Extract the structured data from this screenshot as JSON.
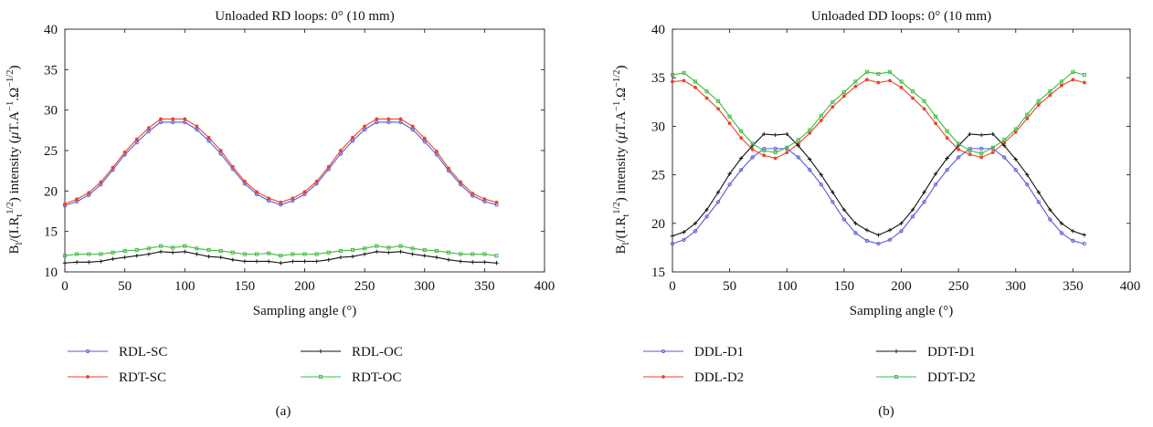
{
  "chart_data": [
    {
      "type": "line",
      "title": "Unloaded RD loops: 0° (10 mm)",
      "xlabel": "Sampling angle (°)",
      "ylabel": "B_l/(I.R_t^1/2) intensity (μT.A^-1.Ω^-1/2)",
      "ylabel_parts": {
        "b": "B",
        "sub_l": "l",
        "mid": "/(I.R",
        "sub_t": "t",
        "sup_half": "1/2",
        "rest": ") intensity (",
        "mu": "μ",
        "unit": "T.A",
        "sup_m1": "−1",
        "dot": ".Ω",
        "sup_mhalf": "−1/2",
        "close": ")"
      },
      "xlim": [
        0,
        400
      ],
      "ylim": [
        10,
        40
      ],
      "xticks": [
        0,
        50,
        100,
        150,
        200,
        250,
        300,
        350,
        400
      ],
      "yticks": [
        10,
        15,
        20,
        25,
        30,
        35,
        40
      ],
      "panel_label": "(a)",
      "x": [
        0,
        10,
        20,
        30,
        40,
        50,
        60,
        70,
        80,
        90,
        100,
        110,
        120,
        130,
        140,
        150,
        160,
        170,
        180,
        190,
        200,
        210,
        220,
        230,
        240,
        250,
        260,
        270,
        280,
        290,
        300,
        310,
        320,
        330,
        340,
        350,
        360
      ],
      "series": [
        {
          "name": "RDL-SC",
          "color": "#5a5ad6",
          "marker": "circle",
          "values": [
            18.2,
            18.7,
            19.5,
            20.8,
            22.6,
            24.5,
            26.0,
            27.4,
            28.5,
            28.5,
            28.5,
            27.6,
            26.2,
            24.6,
            22.7,
            20.9,
            19.6,
            18.8,
            18.3,
            18.8,
            19.6,
            20.9,
            22.7,
            24.6,
            26.2,
            27.6,
            28.5,
            28.5,
            28.5,
            27.6,
            26.1,
            24.5,
            22.5,
            20.8,
            19.4,
            18.7,
            18.3
          ]
        },
        {
          "name": "RDT-SC",
          "color": "#e8452c",
          "marker": "diamond",
          "values": [
            18.4,
            19.0,
            19.8,
            21.1,
            22.9,
            24.8,
            26.4,
            27.8,
            28.9,
            28.9,
            28.9,
            28.0,
            26.6,
            25.0,
            23.0,
            21.2,
            19.9,
            19.1,
            18.6,
            19.1,
            19.9,
            21.2,
            23.0,
            25.0,
            26.6,
            28.0,
            28.9,
            28.9,
            28.9,
            28.0,
            26.5,
            24.9,
            22.8,
            21.1,
            19.7,
            19.0,
            18.6
          ]
        },
        {
          "name": "RDL-OC",
          "color": "#111111",
          "marker": "plus",
          "values": [
            11.1,
            11.2,
            11.2,
            11.3,
            11.6,
            11.8,
            12.0,
            12.2,
            12.5,
            12.4,
            12.5,
            12.2,
            11.9,
            11.8,
            11.5,
            11.3,
            11.3,
            11.3,
            11.1,
            11.3,
            11.3,
            11.3,
            11.5,
            11.8,
            11.9,
            12.2,
            12.5,
            12.4,
            12.5,
            12.2,
            12.0,
            11.8,
            11.5,
            11.3,
            11.2,
            11.2,
            11.1
          ]
        },
        {
          "name": "RDT-OC",
          "color": "#3dbb3d",
          "marker": "square",
          "values": [
            12.0,
            12.2,
            12.2,
            12.2,
            12.4,
            12.6,
            12.7,
            12.9,
            13.2,
            13.0,
            13.2,
            12.9,
            12.7,
            12.6,
            12.4,
            12.2,
            12.2,
            12.3,
            12.0,
            12.2,
            12.2,
            12.2,
            12.4,
            12.6,
            12.7,
            12.9,
            13.2,
            13.0,
            13.2,
            12.9,
            12.7,
            12.6,
            12.4,
            12.2,
            12.2,
            12.2,
            12.0
          ]
        }
      ]
    },
    {
      "type": "line",
      "title": "Unloaded DD loops: 0° (10 mm)",
      "xlabel": "Sampling angle (°)",
      "ylabel": "B_l/(I.R_t^1/2) intensity (μT.A^-1.Ω^-1/2)",
      "xlim": [
        0,
        400
      ],
      "ylim": [
        15,
        40
      ],
      "xticks": [
        0,
        50,
        100,
        150,
        200,
        250,
        300,
        350,
        400
      ],
      "yticks": [
        15,
        20,
        25,
        30,
        35,
        40
      ],
      "panel_label": "(b)",
      "x": [
        0,
        10,
        20,
        30,
        40,
        50,
        60,
        70,
        80,
        90,
        100,
        110,
        120,
        130,
        140,
        150,
        160,
        170,
        180,
        190,
        200,
        210,
        220,
        230,
        240,
        250,
        260,
        270,
        280,
        290,
        300,
        310,
        320,
        330,
        340,
        350,
        360
      ],
      "series": [
        {
          "name": "DDL-D1",
          "color": "#5a5ad6",
          "marker": "circle",
          "values": [
            17.9,
            18.3,
            19.2,
            20.7,
            22.2,
            24.0,
            25.5,
            26.8,
            27.7,
            27.7,
            27.7,
            26.8,
            25.5,
            24.0,
            22.2,
            20.4,
            19.0,
            18.2,
            17.9,
            18.3,
            19.2,
            20.7,
            22.2,
            24.0,
            25.5,
            26.8,
            27.7,
            27.7,
            27.7,
            26.8,
            25.5,
            24.0,
            22.2,
            20.4,
            19.0,
            18.2,
            17.9
          ]
        },
        {
          "name": "DDL-D2",
          "color": "#e8452c",
          "marker": "diamond",
          "values": [
            34.6,
            34.7,
            34.0,
            32.9,
            31.8,
            30.3,
            28.8,
            27.6,
            27.0,
            26.7,
            27.3,
            28.2,
            29.3,
            30.6,
            32.0,
            33.1,
            34.1,
            34.8,
            34.5,
            34.7,
            34.0,
            32.9,
            31.8,
            30.3,
            28.8,
            27.6,
            27.1,
            26.8,
            27.3,
            28.3,
            29.4,
            30.8,
            32.2,
            33.2,
            34.2,
            34.8,
            34.5
          ]
        },
        {
          "name": "DDT-D1",
          "color": "#111111",
          "marker": "plus",
          "values": [
            18.7,
            19.1,
            20.0,
            21.4,
            23.2,
            25.1,
            26.7,
            28.0,
            29.2,
            29.1,
            29.2,
            28.0,
            26.6,
            25.0,
            23.2,
            21.4,
            20.0,
            19.3,
            18.8,
            19.3,
            20.0,
            21.4,
            23.2,
            25.1,
            26.7,
            28.0,
            29.2,
            29.1,
            29.2,
            28.0,
            26.6,
            25.0,
            23.2,
            21.4,
            20.0,
            19.2,
            18.8
          ]
        },
        {
          "name": "DDT-D2",
          "color": "#3dbb3d",
          "marker": "square",
          "values": [
            35.3,
            35.5,
            34.6,
            33.6,
            32.6,
            31.0,
            29.5,
            28.2,
            27.5,
            27.3,
            27.8,
            28.6,
            29.6,
            31.1,
            32.5,
            33.5,
            34.6,
            35.6,
            35.4,
            35.6,
            34.6,
            33.6,
            32.6,
            31.0,
            29.5,
            28.2,
            27.5,
            27.2,
            27.8,
            28.6,
            29.7,
            31.2,
            32.6,
            33.6,
            34.6,
            35.6,
            35.3
          ]
        }
      ]
    }
  ]
}
